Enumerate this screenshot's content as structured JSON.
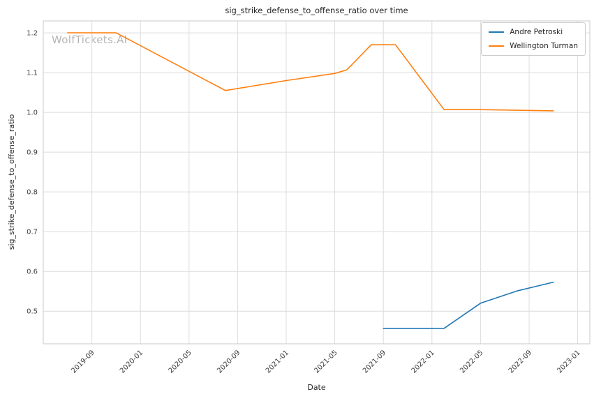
{
  "watermark": "WolfTickets.AI",
  "chart_data": {
    "type": "line",
    "title": "sig_strike_defense_to_offense_ratio over time",
    "xlabel": "Date",
    "ylabel": "sig_strike_defense_to_offense_ratio",
    "grid": true,
    "legend_position": "upper right",
    "x_domain": [
      "2019-05",
      "2023-02"
    ],
    "y_domain": [
      0.418,
      1.23
    ],
    "x_ticks": [
      "2019-09",
      "2020-01",
      "2020-05",
      "2020-09",
      "2021-01",
      "2021-05",
      "2021-09",
      "2022-01",
      "2022-05",
      "2022-09",
      "2023-01"
    ],
    "y_ticks": [
      0.5,
      0.6,
      0.7,
      0.8,
      0.9,
      1.0,
      1.1,
      1.2
    ],
    "series": [
      {
        "name": "Andre Petroski",
        "color": "#1f77b4",
        "points": [
          [
            "2021-09",
            0.457
          ],
          [
            "2022-02",
            0.457
          ],
          [
            "2022-05",
            0.52
          ],
          [
            "2022-08",
            0.551
          ],
          [
            "2022-11",
            0.573
          ]
        ]
      },
      {
        "name": "Wellington Turman",
        "color": "#ff7f0e",
        "points": [
          [
            "2019-07",
            1.2
          ],
          [
            "2019-11",
            1.2
          ],
          [
            "2020-08",
            1.055
          ],
          [
            "2021-01",
            1.08
          ],
          [
            "2021-05",
            1.098
          ],
          [
            "2021-06",
            1.107
          ],
          [
            "2021-08",
            1.17
          ],
          [
            "2021-10",
            1.17
          ],
          [
            "2022-02",
            1.007
          ],
          [
            "2022-05",
            1.007
          ],
          [
            "2022-11",
            1.004
          ]
        ]
      }
    ]
  }
}
